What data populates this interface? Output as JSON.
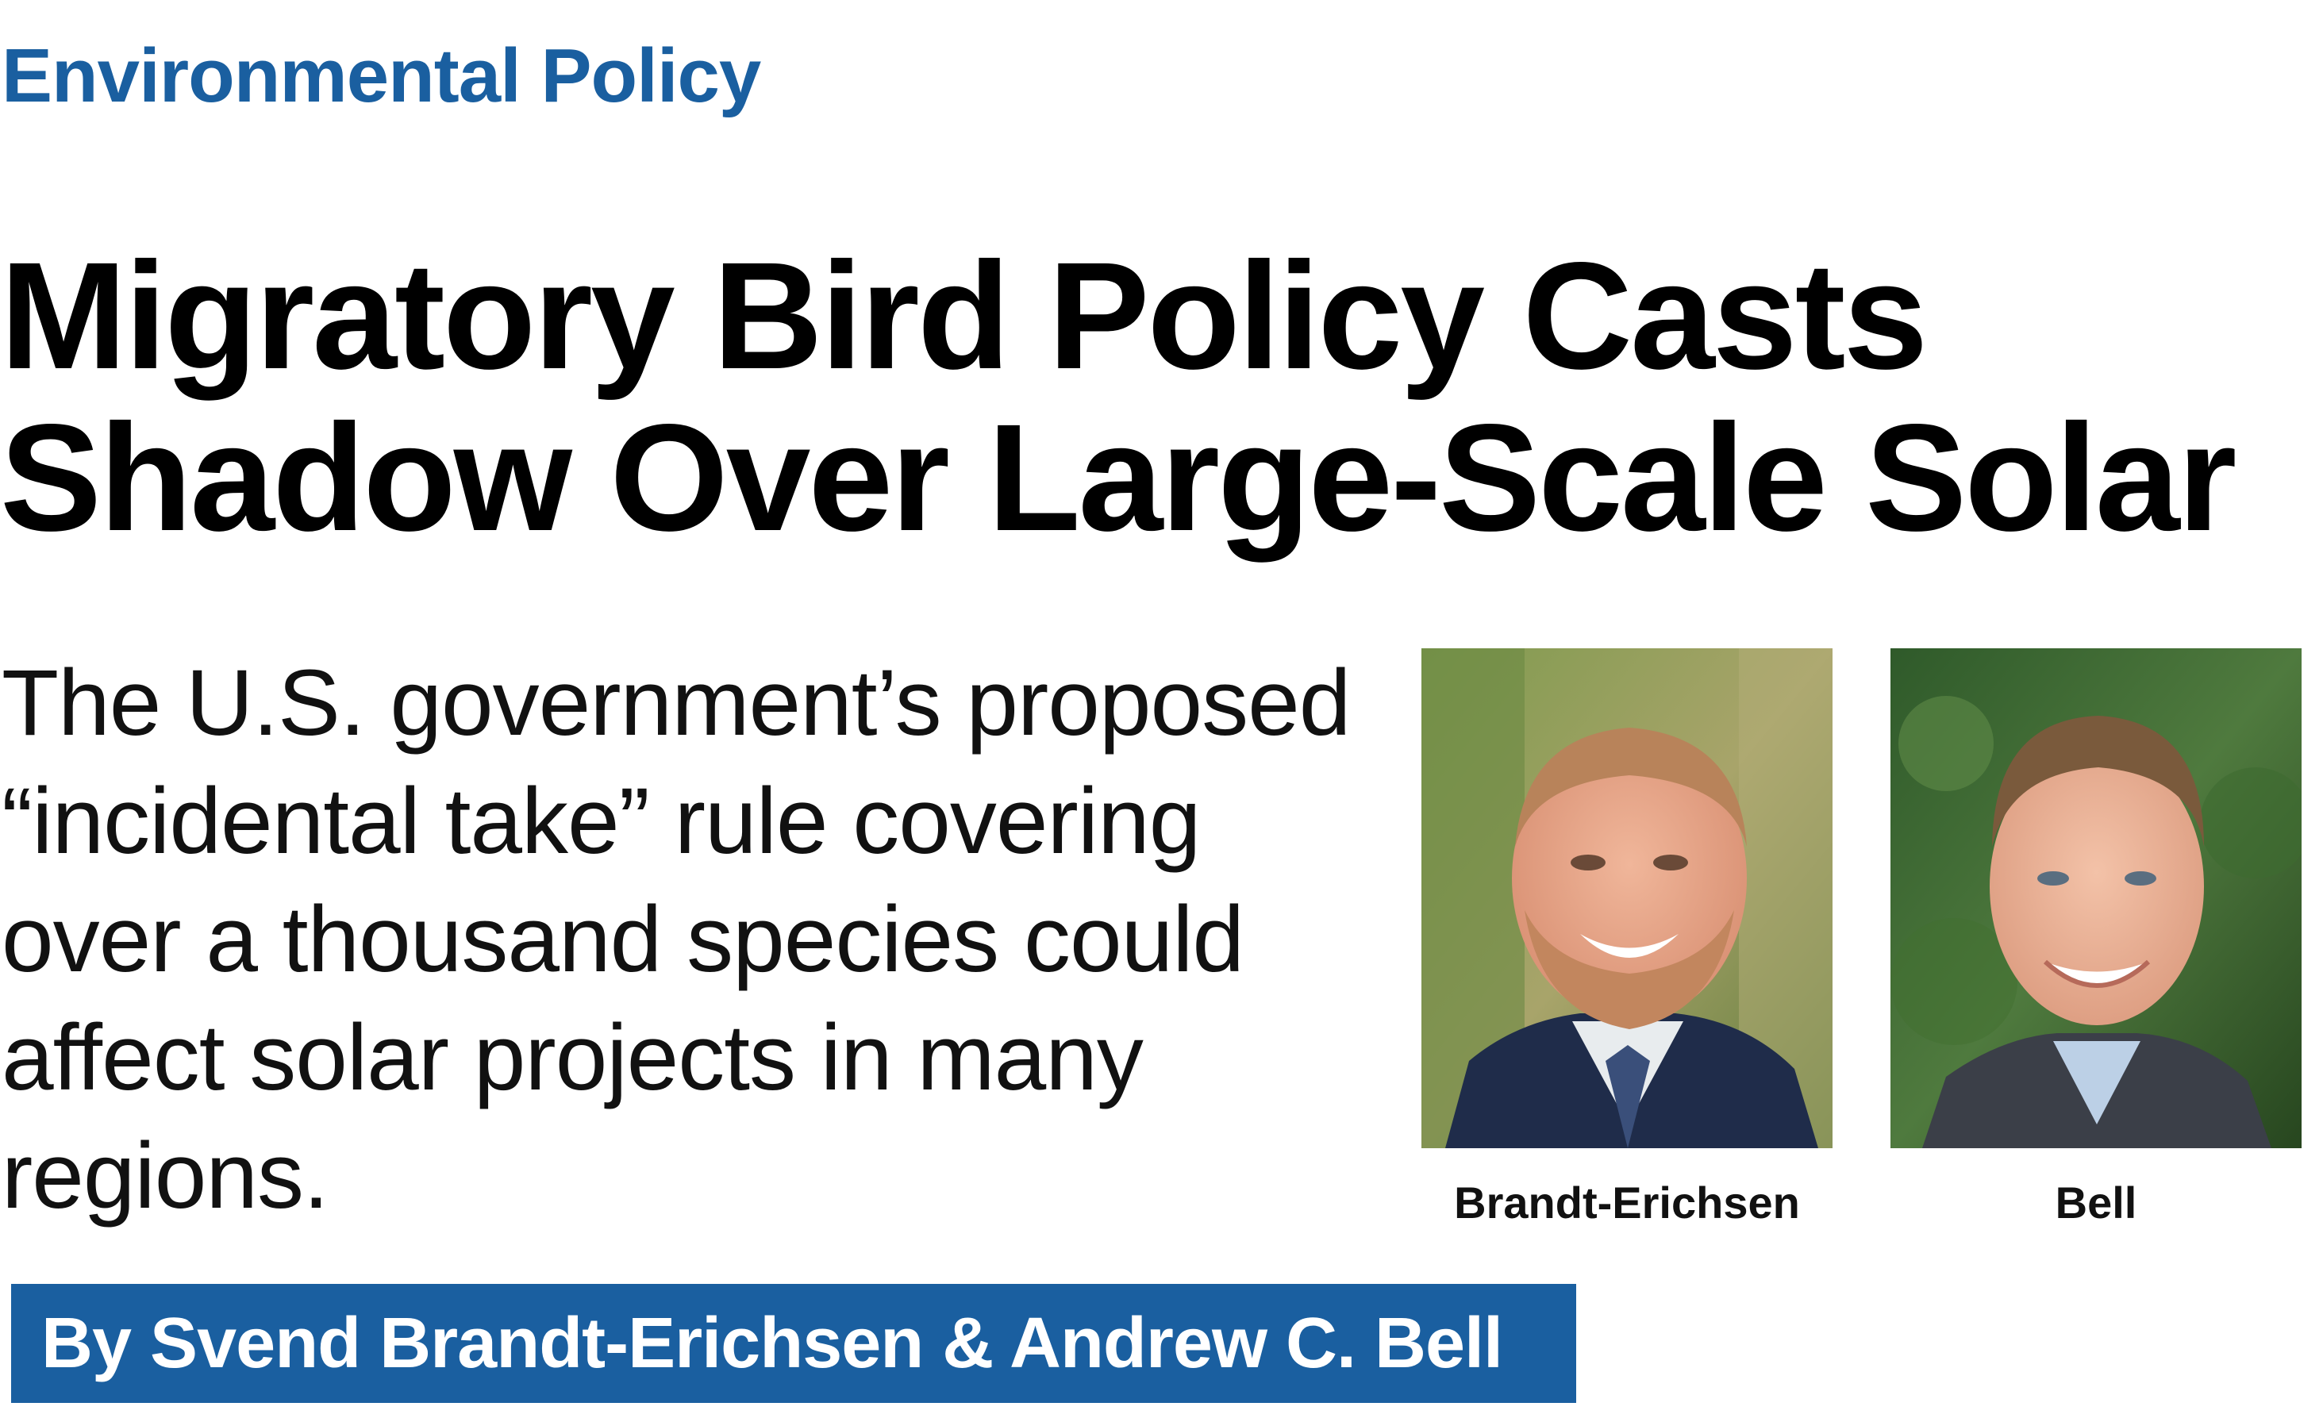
{
  "section": {
    "label": "Environmental Policy",
    "color": "#1a5fa0"
  },
  "headline": {
    "line1": "Migratory Bird Policy Casts",
    "line2": "Shadow Over Large-Scale Solar"
  },
  "dek": {
    "line1": "The U.S. government’s proposed",
    "line2": "“incidental take” rule covering",
    "line3": "over a thousand species could",
    "line4": "affect solar projects in many",
    "line5": "regions."
  },
  "photos": [
    {
      "caption": "Brandt-Erichsen",
      "icon": "portrait-photo"
    },
    {
      "caption": "Bell",
      "icon": "portrait-photo"
    }
  ],
  "byline": {
    "text": "By Svend Brandt-Erichsen & Andrew C. Bell",
    "background": "#1a5fa0"
  }
}
